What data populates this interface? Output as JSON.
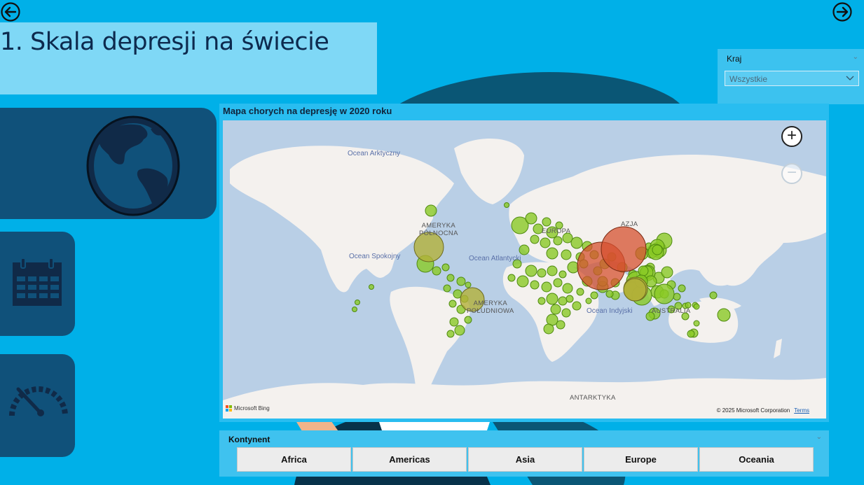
{
  "page": {
    "title": "1. Skala depresji na świecie"
  },
  "nav": {
    "back_icon": "arrow-left-circle-icon",
    "forward_icon": "arrow-right-circle-icon"
  },
  "slicer_kraj": {
    "label": "Kraj",
    "selected_value": "Wszystkie"
  },
  "side_nav": {
    "items": [
      {
        "icon": "globe-icon"
      },
      {
        "icon": "calendar-icon"
      },
      {
        "icon": "gauge-icon"
      }
    ]
  },
  "map_visual": {
    "title": "Mapa chorych na depresję w 2020 roku",
    "ocean_labels": {
      "arctic": "Ocean Arktyczny",
      "pacific": "Ocean Spokojny",
      "atlantic": "Ocean Atlantycki",
      "indian": "Ocean Indyjski"
    },
    "continent_labels": {
      "north_america_1": "AMERYKA",
      "north_america_2": "PÓŁNOCNA",
      "south_america_1": "AMERYKA",
      "south_america_2": "POŁUDNIOWA",
      "europe": "EUROPA",
      "asia": "AZJA",
      "australia": "AUSTRALIA",
      "antarctica": "ANTARKTYKA"
    },
    "zoom_in_label": "+",
    "zoom_out_label": "−",
    "provider": "Microsoft Bing",
    "copyright": "© 2025 Microsoft Corporation",
    "terms": "Terms"
  },
  "colors": {
    "background": "#00b0e8",
    "panel_dark": "#10517a",
    "bubble_green": "#8ac926",
    "bubble_olive": "#b3b03a",
    "bubble_red": "#d6502f"
  },
  "kontynent_slicer": {
    "label": "Kontynent",
    "options": [
      "Africa",
      "Americas",
      "Asia",
      "Europe",
      "Oceania"
    ]
  }
}
